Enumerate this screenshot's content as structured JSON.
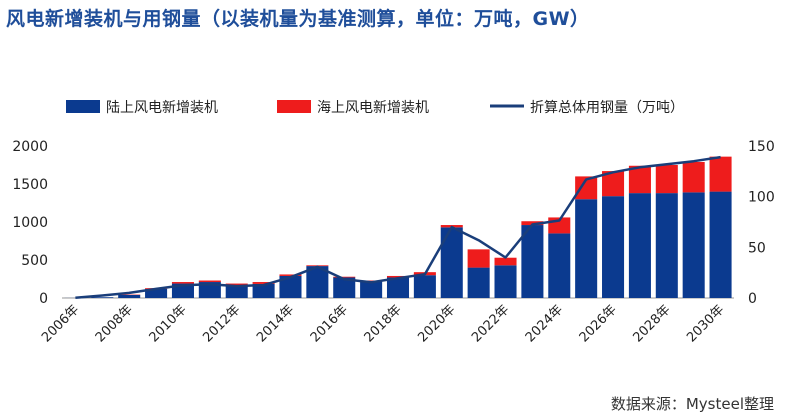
{
  "title": "风电新增装机与用钢量（以装机量为基准测算，单位：万吨，GW）",
  "source": "数据来源：Mysteel整理",
  "colors": {
    "onshore": "#0b3a8f",
    "offshore": "#ee1c1c",
    "steel": "#1a3e7a"
  },
  "chart_data": {
    "type": "bar",
    "title": "风电新增装机与用钢量（以装机量为基准测算，单位：万吨，GW）",
    "stacked": true,
    "categories": [
      "2006年",
      "2007年",
      "2008年",
      "2009年",
      "2010年",
      "2011年",
      "2012年",
      "2013年",
      "2014年",
      "2015年",
      "2016年",
      "2017年",
      "2018年",
      "2019年",
      "2020年",
      "2021年",
      "2022年",
      "2023年",
      "2024年",
      "2025年",
      "2026年",
      "2027年",
      "2028年",
      "2029年",
      "2030年"
    ],
    "x_tick_labels": [
      "2006年",
      "2008年",
      "2010年",
      "2012年",
      "2014年",
      "2016年",
      "2018年",
      "2020年",
      "2022年",
      "2024年",
      "2026年",
      "2028年",
      "2030年"
    ],
    "series": [
      {
        "name": "陆上风电新增装机",
        "type": "bar",
        "axis": "left",
        "values": [
          1,
          10,
          40,
          120,
          190,
          210,
          170,
          185,
          290,
          420,
          270,
          220,
          270,
          300,
          930,
          400,
          430,
          960,
          850,
          1300,
          1340,
          1380,
          1380,
          1390,
          1400
        ]
      },
      {
        "name": "海上风电新增装机",
        "type": "bar",
        "axis": "left",
        "values": [
          0,
          0,
          5,
          10,
          20,
          20,
          20,
          25,
          20,
          10,
          10,
          10,
          20,
          40,
          30,
          240,
          100,
          50,
          210,
          300,
          330,
          360,
          370,
          400,
          460
        ]
      },
      {
        "name": "折算总体用钢量（万吨）",
        "type": "line",
        "axis": "right",
        "values": [
          0.3,
          2.5,
          5,
          9,
          12.5,
          13.5,
          11.7,
          12.7,
          20.5,
          30.8,
          18.6,
          15.5,
          19.5,
          23.5,
          70,
          57,
          40,
          72.5,
          76.5,
          117,
          124,
          129,
          132,
          135,
          139
        ]
      }
    ],
    "y_left": {
      "min": 0,
      "max": 2000,
      "ticks": [
        0,
        500,
        1000,
        1500,
        2000
      ]
    },
    "y_right": {
      "min": 0,
      "max": 150,
      "ticks": [
        0,
        50,
        100,
        150
      ]
    },
    "legend_position": "top",
    "grid": false
  }
}
